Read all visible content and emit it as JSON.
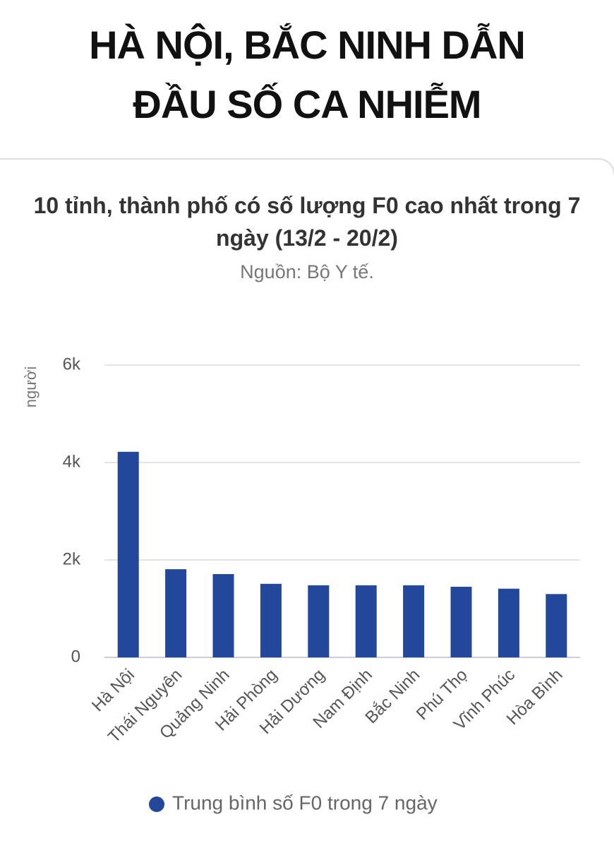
{
  "headline": [
    "HÀ NỘI, BẮC NINH DẪN",
    "ĐẦU SỐ CA NHIỄM"
  ],
  "chart_data": {
    "type": "bar",
    "title": "10 tỉnh, thành phố có số lượng F0 cao nhất trong 7 ngày (13/2 - 20/2)",
    "subtitle": "Nguồn: Bộ Y tế.",
    "y_label": "người",
    "categories": [
      "Hà Nội",
      "Thái Nguyên",
      "Quảng Ninh",
      "Hải Phòng",
      "Hải Dương",
      "Nam Định",
      "Bắc Ninh",
      "Phú Thọ",
      "Vĩnh Phúc",
      "Hòa Bình"
    ],
    "series": [
      {
        "name": "Trung bình số F0 trong 7 ngày",
        "color": "#23479b",
        "values": [
          4220,
          1810,
          1710,
          1510,
          1480,
          1480,
          1480,
          1450,
          1410,
          1300
        ]
      }
    ],
    "ylim": [
      0,
      6000
    ],
    "yticks": [
      0,
      {
        "value": 2000,
        "label": "2k"
      },
      {
        "value": 4000,
        "label": "4k"
      },
      {
        "value": 6000,
        "label": "6k"
      }
    ],
    "grid": true
  }
}
